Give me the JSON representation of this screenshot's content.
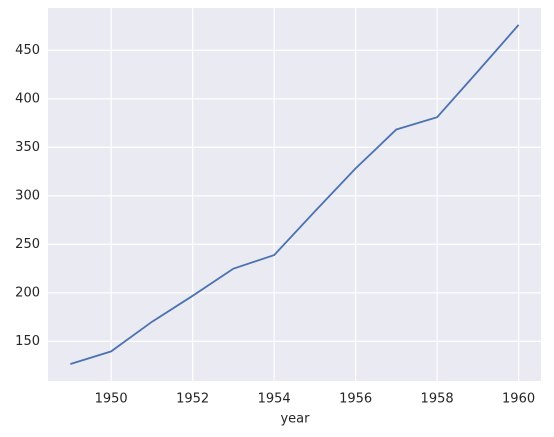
{
  "chart_data": {
    "type": "line",
    "x_label": "year",
    "x": [
      1949,
      1950,
      1951,
      1952,
      1953,
      1954,
      1955,
      1956,
      1957,
      1958,
      1959,
      1960
    ],
    "series": [
      {
        "color": "#4c72b0",
        "values": [
          126.7,
          139.7,
          170.2,
          197.0,
          225.0,
          238.9,
          284.0,
          328.3,
          368.4,
          381.0,
          428.3,
          476.2
        ]
      }
    ],
    "xlim": [
      1948.45,
      1960.55
    ],
    "xticks": [
      1950,
      1952,
      1954,
      1956,
      1958,
      1960
    ],
    "ylim": [
      109.2,
      493.6
    ],
    "yticks": [
      150,
      200,
      250,
      300,
      350,
      400,
      450
    ],
    "grid": true,
    "background": "#eaeaf2"
  }
}
